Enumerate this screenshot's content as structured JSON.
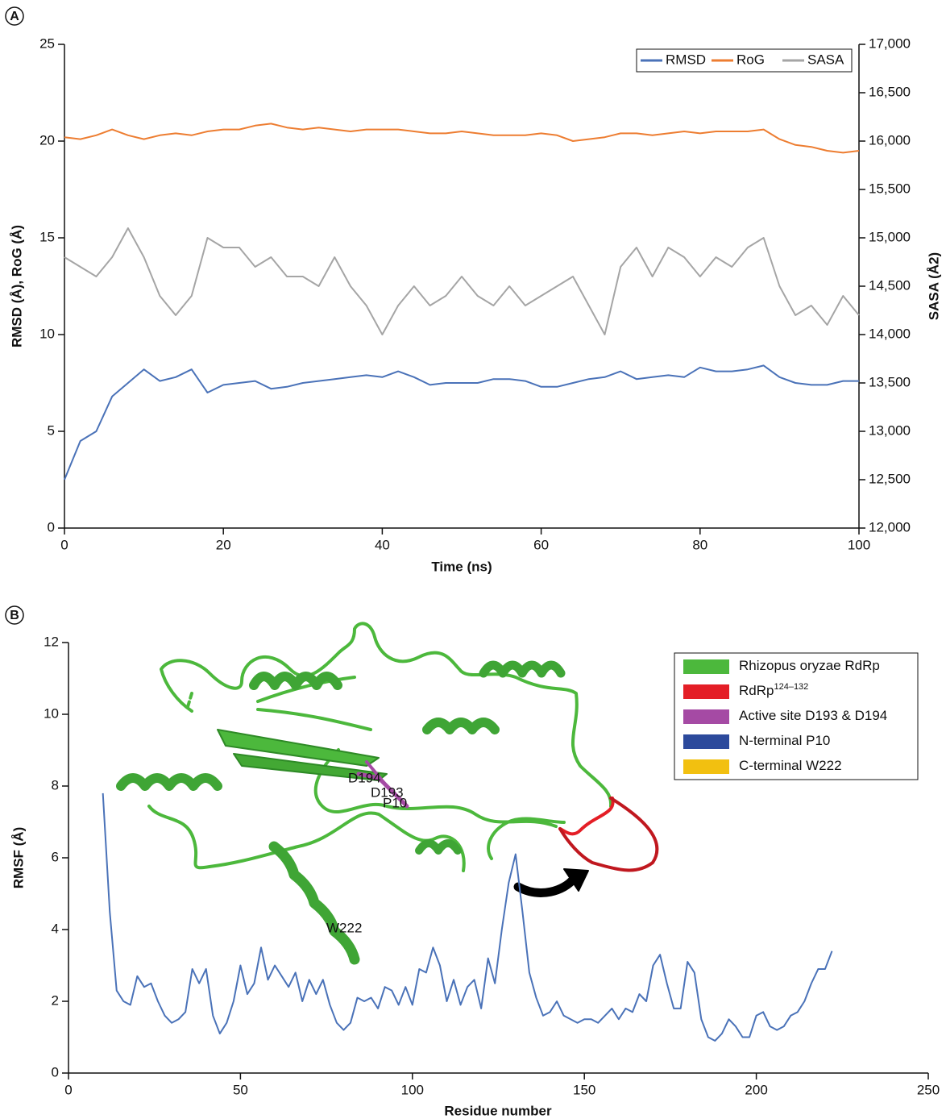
{
  "chart_data": [
    {
      "type": "line",
      "panel": "A",
      "xlabel": "Time (ns)",
      "ylabel": "RMSD (Å), RoG (Å)",
      "y2label": "SASA (Å2)",
      "x": [
        0,
        2,
        4,
        6,
        8,
        10,
        12,
        14,
        16,
        18,
        20,
        22,
        24,
        26,
        28,
        30,
        32,
        34,
        36,
        38,
        40,
        42,
        44,
        46,
        48,
        50,
        52,
        54,
        56,
        58,
        60,
        62,
        64,
        66,
        68,
        70,
        72,
        74,
        76,
        78,
        80,
        82,
        84,
        86,
        88,
        90,
        92,
        94,
        96,
        98,
        100
      ],
      "series": [
        {
          "name": "RMSD",
          "color": "#4a72b8",
          "values": [
            2.5,
            4.5,
            5.0,
            6.8,
            7.5,
            8.2,
            7.6,
            7.8,
            8.2,
            7.0,
            7.4,
            7.5,
            7.6,
            7.2,
            7.3,
            7.5,
            7.6,
            7.7,
            7.8,
            7.9,
            7.8,
            8.1,
            7.8,
            7.4,
            7.5,
            7.5,
            7.5,
            7.7,
            7.7,
            7.6,
            7.3,
            7.3,
            7.5,
            7.7,
            7.8,
            8.1,
            7.7,
            7.8,
            7.9,
            7.8,
            8.3,
            8.1,
            8.1,
            8.2,
            8.4,
            7.8,
            7.5,
            7.4,
            7.4,
            7.6,
            7.6
          ]
        },
        {
          "name": "RoG",
          "color": "#ed7d31",
          "values": [
            20.2,
            20.1,
            20.3,
            20.6,
            20.3,
            20.1,
            20.3,
            20.4,
            20.3,
            20.5,
            20.6,
            20.6,
            20.8,
            20.9,
            20.7,
            20.6,
            20.7,
            20.6,
            20.5,
            20.6,
            20.6,
            20.6,
            20.5,
            20.4,
            20.4,
            20.5,
            20.4,
            20.3,
            20.3,
            20.3,
            20.4,
            20.3,
            20.0,
            20.1,
            20.2,
            20.4,
            20.4,
            20.3,
            20.4,
            20.5,
            20.4,
            20.5,
            20.5,
            20.5,
            20.6,
            20.1,
            19.8,
            19.7,
            19.5,
            19.4,
            19.5
          ]
        },
        {
          "name": "SASA",
          "color": "#a5a5a5",
          "axis": "y2",
          "values": [
            14800,
            14700,
            14600,
            14800,
            15100,
            14800,
            14400,
            14200,
            14400,
            15000,
            14900,
            14900,
            14700,
            14800,
            14600,
            14600,
            14500,
            14800,
            14500,
            14300,
            14000,
            14300,
            14500,
            14300,
            14400,
            14600,
            14400,
            14300,
            14500,
            14300,
            14400,
            14500,
            14600,
            14300,
            14000,
            14700,
            14900,
            14600,
            14900,
            14800,
            14600,
            14800,
            14700,
            14900,
            15000,
            14500,
            14200,
            14300,
            14100,
            14400,
            14200
          ]
        }
      ],
      "xlim": [
        0,
        100
      ],
      "xticks": [
        0,
        20,
        40,
        60,
        80,
        100
      ],
      "ylim": [
        0,
        25
      ],
      "yticks": [
        0,
        5,
        10,
        15,
        20,
        25
      ],
      "y2lim": [
        12000,
        17000
      ],
      "y2ticks": [
        {
          "value": 12000,
          "label": "12,000"
        },
        {
          "value": 12500,
          "label": "12,500"
        },
        {
          "value": 13000,
          "label": "13,000"
        },
        {
          "value": 13500,
          "label": "13,500"
        },
        {
          "value": 14000,
          "label": "14,000"
        },
        {
          "value": 14500,
          "label": "14,500"
        },
        {
          "value": 15000,
          "label": "15,000"
        },
        {
          "value": 15500,
          "label": "15,500"
        },
        {
          "value": 16000,
          "label": "16,000"
        },
        {
          "value": 16500,
          "label": "16,500"
        },
        {
          "value": 17000,
          "label": "17,000"
        }
      ],
      "legend": "upper right"
    },
    {
      "type": "line",
      "panel": "B",
      "xlabel": "Residue number",
      "ylabel": "RMSF (Å)",
      "x": [
        10,
        12,
        14,
        16,
        18,
        20,
        22,
        24,
        26,
        28,
        30,
        32,
        34,
        36,
        38,
        40,
        42,
        44,
        46,
        48,
        50,
        52,
        54,
        56,
        58,
        60,
        62,
        64,
        66,
        68,
        70,
        72,
        74,
        76,
        78,
        80,
        82,
        84,
        86,
        88,
        90,
        92,
        94,
        96,
        98,
        100,
        102,
        104,
        106,
        108,
        110,
        112,
        114,
        116,
        118,
        120,
        122,
        124,
        126,
        128,
        130,
        132,
        134,
        136,
        138,
        140,
        142,
        144,
        146,
        148,
        150,
        152,
        154,
        156,
        158,
        160,
        162,
        164,
        166,
        168,
        170,
        172,
        174,
        176,
        178,
        180,
        182,
        184,
        186,
        188,
        190,
        192,
        194,
        196,
        198,
        200,
        202,
        204,
        206,
        208,
        210,
        212,
        214,
        216,
        218,
        220,
        222
      ],
      "series": [
        {
          "color": "#4a72b8",
          "values": [
            7.8,
            4.5,
            2.3,
            2.0,
            1.9,
            2.7,
            2.4,
            2.5,
            2.0,
            1.6,
            1.4,
            1.5,
            1.7,
            2.9,
            2.5,
            2.9,
            1.6,
            1.1,
            1.4,
            2.0,
            3.0,
            2.2,
            2.5,
            3.5,
            2.6,
            3.0,
            2.7,
            2.4,
            2.8,
            2.0,
            2.6,
            2.2,
            2.6,
            1.9,
            1.4,
            1.2,
            1.4,
            2.1,
            2.0,
            2.1,
            1.8,
            2.4,
            2.3,
            1.9,
            2.4,
            1.9,
            2.9,
            2.8,
            3.5,
            3.0,
            2.0,
            2.6,
            1.9,
            2.4,
            2.6,
            1.8,
            3.2,
            2.5,
            4.0,
            5.3,
            6.1,
            4.5,
            2.8,
            2.1,
            1.6,
            1.7,
            2.0,
            1.6,
            1.5,
            1.4,
            1.5,
            1.5,
            1.4,
            1.6,
            1.8,
            1.5,
            1.8,
            1.7,
            2.2,
            2.0,
            3.0,
            3.3,
            2.5,
            1.8,
            1.8,
            3.1,
            2.8,
            1.5,
            1.0,
            0.9,
            1.1,
            1.5,
            1.3,
            1.0,
            1.0,
            1.6,
            1.7,
            1.3,
            1.2,
            1.3,
            1.6,
            1.7,
            2.0,
            2.5,
            2.9,
            2.9,
            3.4
          ]
        }
      ],
      "xlim": [
        0,
        250
      ],
      "xticks": [
        0,
        50,
        100,
        150,
        200,
        250
      ],
      "ylim": [
        0,
        12
      ],
      "yticks": [
        0,
        2,
        4,
        6,
        8,
        10,
        12
      ],
      "structure_labels": [
        "D194",
        "D193",
        "P10",
        "W222"
      ],
      "structure_legend": [
        {
          "label": "Rhizopus oryzae RdRp",
          "color": "#4cb83c"
        },
        {
          "label": "RdRp",
          "superscript": "124–132",
          "color": "#e41e26"
        },
        {
          "label": "Active site D193 & D194",
          "color": "#a54aa4"
        },
        {
          "label": "N-terminal P10",
          "color": "#2c4a9c"
        },
        {
          "label": "C-terminal W222",
          "color": "#f2c010"
        }
      ]
    }
  ]
}
